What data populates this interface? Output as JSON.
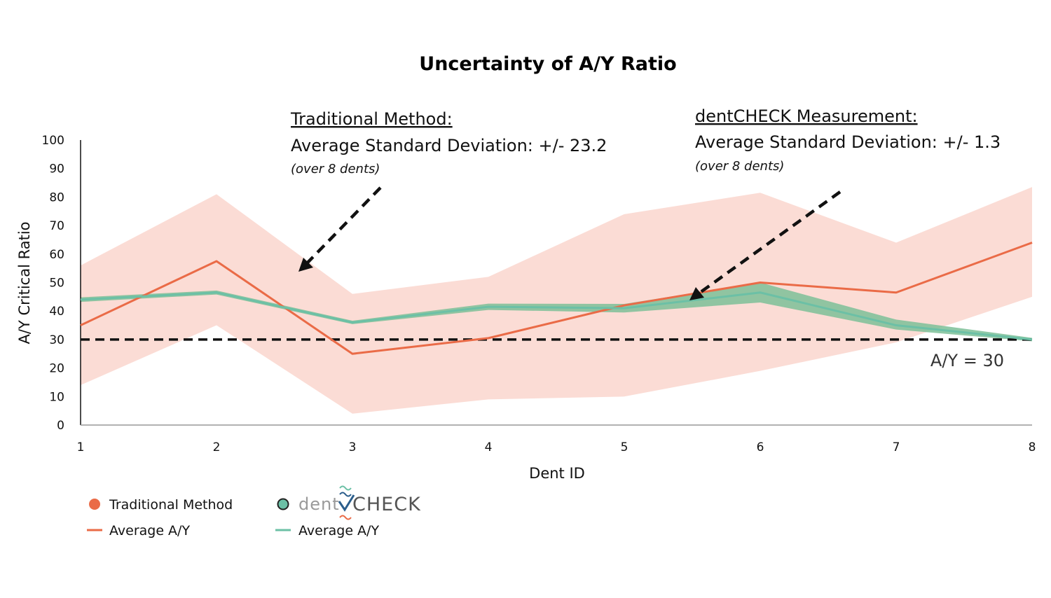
{
  "chart_data": {
    "type": "line",
    "title": "Uncertainty of A/Y Ratio",
    "xlabel": "Dent ID",
    "ylabel": "A/Y Critical Ratio",
    "x": [
      1,
      2,
      3,
      4,
      5,
      6,
      7,
      8
    ],
    "ylim": [
      0,
      100
    ],
    "yticks": [
      0,
      10,
      20,
      30,
      40,
      50,
      60,
      70,
      80,
      90,
      100
    ],
    "grid": false,
    "series": [
      {
        "name": "Average A/Y",
        "group": "Traditional Method",
        "color": "#ea6b47",
        "values": [
          35,
          57.5,
          25,
          30.5,
          42,
          50,
          46.5,
          64
        ],
        "band_upper": [
          56,
          81,
          46,
          52,
          74,
          81.5,
          64,
          83.5
        ],
        "band_lower": [
          14,
          35,
          4,
          9,
          10,
          19,
          29,
          45
        ],
        "band_color": "#fbd8d0"
      },
      {
        "name": "Average A/Y",
        "group": "dentCHECK",
        "color": "#6cc0a6",
        "values": [
          44,
          46.5,
          36,
          41.5,
          41,
          46.5,
          35,
          30
        ],
        "band_upper": [
          44.8,
          47.2,
          36.6,
          42.6,
          42.5,
          50,
          37,
          30.6
        ],
        "band_lower": [
          43.2,
          45.8,
          35.4,
          40.4,
          39.5,
          43,
          33.5,
          29.4
        ],
        "band_color": "#7cbf98"
      }
    ],
    "reference_line": {
      "y": 30,
      "label": "A/Y = 30",
      "style": "dashed"
    },
    "annotations": [
      {
        "heading": "Traditional Method:",
        "line": "Average Standard Deviation: +/- 23.2",
        "note": "(over 8 dents)"
      },
      {
        "heading": "dentCHECK Measurement:",
        "line": "Average Standard Deviation: +/- 1.3",
        "note": "(over 8 dents)"
      }
    ],
    "legend": {
      "position": "bottom-left",
      "traditional_label": "Traditional Method",
      "traditional_avg_label": "Average A/Y",
      "dentcheck_logo_prefix": "dent",
      "dentcheck_logo_main": "CHECK",
      "dentcheck_avg_label": "Average A/Y"
    }
  }
}
